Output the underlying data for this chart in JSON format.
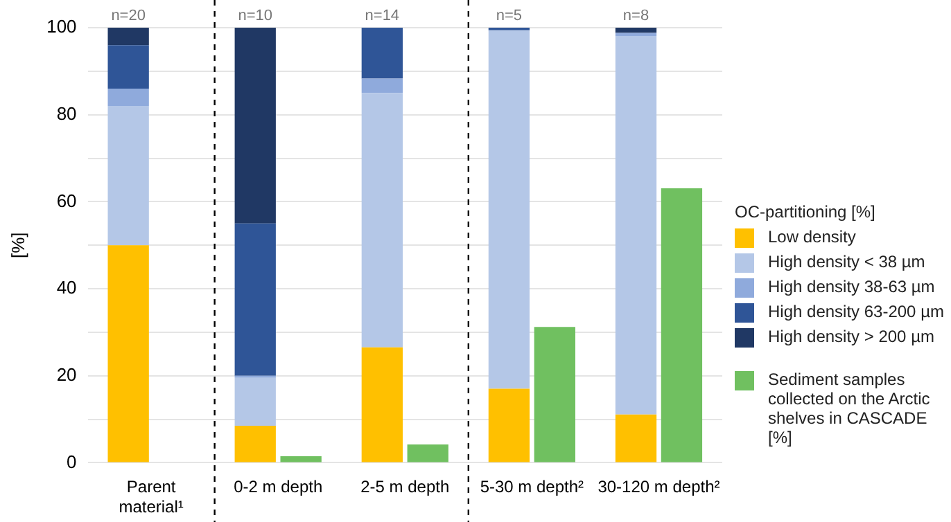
{
  "chart_data": {
    "type": "bar",
    "ylabel": "[%]",
    "legend_title": "OC-partitioning [%]",
    "legend": "right",
    "categories": [
      "Parent material¹",
      "0-2 m depth",
      "2-5 m depth",
      "5-30 m depth²",
      "30-120 m depth²"
    ],
    "series": [
      {
        "name": "Low density",
        "color": "#ffc000",
        "base": [
          0,
          0,
          0,
          0,
          0
        ],
        "values": [
          50,
          8.5,
          26.5,
          17,
          11.1
        ]
      },
      {
        "name": "High density < 38 µm",
        "color": "#b4c7e7",
        "base": [
          50,
          8.5,
          26.5,
          17,
          11.1
        ],
        "values": [
          32,
          11,
          58.5,
          82.4,
          87
        ]
      },
      {
        "name": "High density 38-63 µm",
        "color": "#8faadc",
        "base": [
          82,
          19.5,
          85,
          null,
          98.1
        ],
        "values": [
          4,
          0.5,
          3.3,
          null,
          0.7
        ]
      },
      {
        "name": "High density 63-200 µm",
        "color": "#2f5597",
        "base": [
          86,
          20,
          88.3,
          99.4,
          null
        ],
        "values": [
          10,
          35,
          11.7,
          0.6,
          null
        ]
      },
      {
        "name": "High density > 200 µm",
        "color": "#203864",
        "base": [
          96,
          55,
          null,
          null,
          98.8
        ],
        "values": [
          4,
          45,
          null,
          null,
          1.2
        ]
      },
      {
        "name": "Sediment samples collected on the Arctic shelves in CASCADE [%]",
        "color": "#70c060",
        "values": [
          null,
          1.5,
          4.2,
          31.2,
          63.1
        ]
      }
    ],
    "ylim": [
      0,
      100
    ],
    "yticks": [
      0,
      {
        "value": 10,
        "label": null
      },
      20,
      {
        "value": 30,
        "label": null
      },
      40,
      {
        "value": 50,
        "label": null
      },
      60,
      {
        "value": 70,
        "label": null
      },
      80,
      {
        "value": 90,
        "label": null
      },
      100
    ],
    "grid": "y",
    "annotations": [
      {
        "text": "n=20",
        "x": "Parent material¹",
        "y": 100
      },
      {
        "text": "n=10",
        "x": "0-2 m depth",
        "y": 100
      },
      {
        "text": "n=14",
        "x": "2-5 m depth",
        "y": 100
      },
      {
        "text": "n=5",
        "x": "5-30 m depth²",
        "y": 100
      },
      {
        "text": "n=8",
        "x": "30-120 m depth²",
        "y": 100
      }
    ]
  }
}
